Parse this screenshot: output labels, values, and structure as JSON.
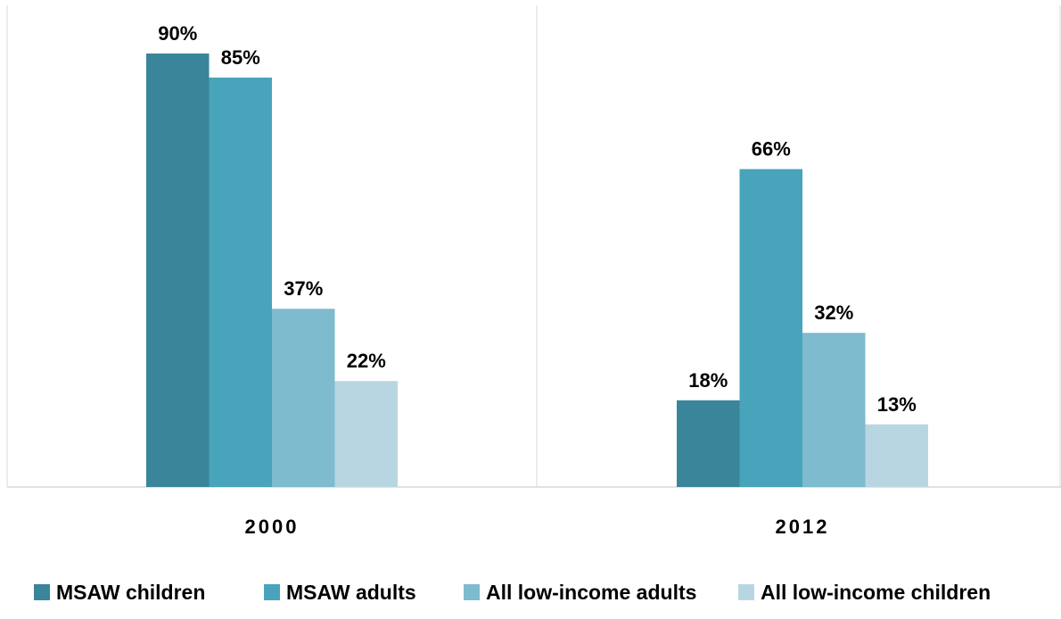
{
  "chart_data": {
    "type": "bar",
    "title": "",
    "xlabel": "",
    "ylabel": "",
    "ylim": [
      0,
      100
    ],
    "grid": false,
    "legend_position": "bottom",
    "categories": [
      "2000",
      "2012"
    ],
    "series": [
      {
        "name": "MSAW children",
        "color": "#3a8599",
        "values": [
          90,
          18
        ],
        "labels": [
          "90%",
          "18%"
        ]
      },
      {
        "name": "MSAW adults",
        "color": "#48a4ba",
        "values": [
          85,
          66
        ],
        "labels": [
          "85%",
          "66%"
        ]
      },
      {
        "name": "All low-income adults",
        "color": "#7ebbcf",
        "values": [
          37,
          32
        ],
        "labels": [
          "37%",
          "32%"
        ]
      },
      {
        "name": "All low-income children",
        "color": "#b8d6e1",
        "values": [
          22,
          13
        ],
        "labels": [
          "22%",
          "13%"
        ]
      }
    ]
  }
}
